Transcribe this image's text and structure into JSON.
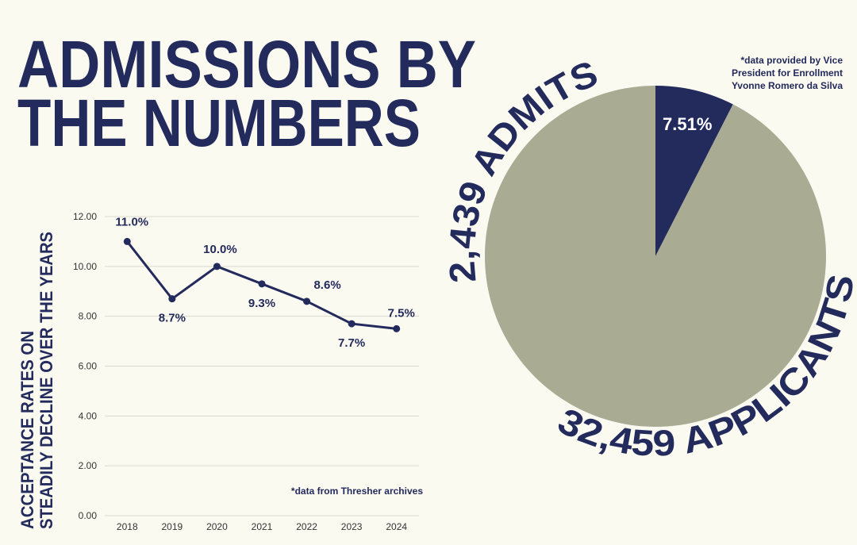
{
  "title_lines": [
    "ADMISSIONS BY",
    "THE NUMBERS"
  ],
  "chart_data": [
    {
      "type": "line",
      "ylabel": [
        "ACCEPTANCE RATES ON",
        "STEADILY DECLINE OVER THE YEARS"
      ],
      "categories": [
        "2018",
        "2019",
        "2020",
        "2021",
        "2022",
        "2023",
        "2024"
      ],
      "values": [
        11.0,
        8.7,
        10.0,
        9.3,
        8.6,
        7.7,
        7.5
      ],
      "value_labels": [
        "11.0%",
        "8.7%",
        "10.0%",
        "9.3%",
        "8.6%",
        "7.7%",
        "7.5%"
      ],
      "color": "#232a5c",
      "ylim": [
        0,
        12
      ],
      "yticks": [
        {
          "value": 0,
          "label": "0.00"
        },
        {
          "value": 2,
          "label": "2.00"
        },
        {
          "value": 4,
          "label": "4.00"
        },
        {
          "value": 6,
          "label": "6.00"
        },
        {
          "value": 8,
          "label": "8.00"
        },
        {
          "value": 10,
          "label": "10.00"
        },
        {
          "value": 12,
          "label": "12.00"
        }
      ],
      "grid": true,
      "note": "*data from Thresher archives"
    },
    {
      "type": "pie",
      "values": [
        7.51,
        92.49
      ],
      "value_labels": [
        "7.51%",
        null
      ],
      "colors": [
        "#232a5c",
        "#a9ab93"
      ],
      "annotations": [
        "2,439 ADMITS",
        "32,459 APPLICANTS"
      ],
      "note": [
        "*data provided by Vice",
        "President for Enrollment",
        "Yvonne Romero da Silva"
      ]
    }
  ]
}
